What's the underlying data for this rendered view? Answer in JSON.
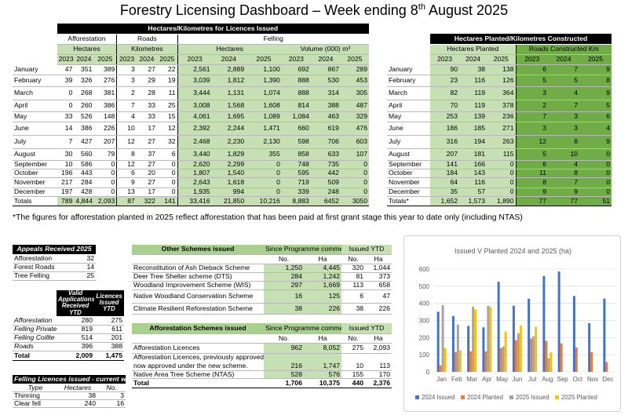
{
  "title_main": "Forestry Licensing Dashboard – Week ending 8",
  "title_sup": "th",
  "title_end": " August 2025",
  "main_table": {
    "header_top": "Hectares/Kilometres for Licences Issued",
    "header_groups": [
      "Afforestation",
      "Roads",
      "Felling"
    ],
    "sub_headers": [
      "Hectares",
      "Kilometres",
      "Hectares",
      "Volume (000) m³"
    ],
    "years": [
      "2023",
      "2024",
      "2025"
    ],
    "rows": [
      {
        "m": "January",
        "v": [
          "47",
          "351",
          "389",
          "3",
          "27",
          "22",
          "2,561",
          "2,889",
          "1,100",
          "692",
          "867",
          "289"
        ]
      },
      {
        "m": "February",
        "v": [
          "39",
          "326",
          "276",
          "3",
          "29",
          "19",
          "3,039",
          "1,812",
          "1,390",
          "888",
          "530",
          "453"
        ]
      },
      {
        "m": "March",
        "v": [
          "0",
          "268",
          "381",
          "2",
          "28",
          "11",
          "3,444",
          "1,131",
          "1,074",
          "888",
          "314",
          "305"
        ]
      },
      {
        "m": "April",
        "v": [
          "0",
          "260",
          "386",
          "7",
          "33",
          "25",
          "3,008",
          "1,568",
          "1,608",
          "814",
          "388",
          "487"
        ]
      },
      {
        "m": "May",
        "v": [
          "33",
          "526",
          "148",
          "4",
          "33",
          "15",
          "4,061",
          "1,695",
          "1,089",
          "1,084",
          "463",
          "329"
        ]
      },
      {
        "m": "June",
        "v": [
          "14",
          "386",
          "226",
          "10",
          "17",
          "12",
          "2,392",
          "2,244",
          "1,471",
          "660",
          "619",
          "476"
        ]
      },
      {
        "m": "July",
        "v": [
          "7",
          "427",
          "207",
          "12",
          "27",
          "32",
          "2,468",
          "2,230",
          "2,130",
          "598",
          "706",
          "603"
        ]
      },
      {
        "m": "August",
        "v": [
          "30",
          "560",
          "79",
          "8",
          "37",
          "6",
          "3,440",
          "1,829",
          "355",
          "858",
          "633",
          "107"
        ]
      },
      {
        "m": "September",
        "v": [
          "10",
          "586",
          "0",
          "12",
          "27",
          "0",
          "2,620",
          "2,299",
          "0",
          "748",
          "735",
          "0"
        ]
      },
      {
        "m": "October",
        "v": [
          "196",
          "443",
          "0",
          "6",
          "20",
          "0",
          "1,807",
          "1,540",
          "0",
          "595",
          "442",
          "0"
        ]
      },
      {
        "m": "November",
        "v": [
          "217",
          "284",
          "0",
          "9",
          "27",
          "0",
          "2,643",
          "1,618",
          "0",
          "719",
          "509",
          "0"
        ]
      },
      {
        "m": "December",
        "v": [
          "197",
          "428",
          "0",
          "13",
          "17",
          "0",
          "1,935",
          "994",
          "0",
          "339",
          "248",
          "0"
        ]
      }
    ],
    "totals_label": "Totals",
    "totals": [
      "789",
      "4,844",
      "2,093",
      "87",
      "322",
      "141",
      "33,416",
      "21,850",
      "10,216",
      "8,883",
      "6452",
      "3050"
    ]
  },
  "footnote": "*The figures for afforestation planted in 2025 reflect afforestation that has been paid at first grant stage this year to date only (including NTAS)",
  "planted_table": {
    "header_top": "Hectares Planted/Kilometres Constructed",
    "sub_headers": [
      "Hectares Planted",
      "Roads Constructed Km"
    ],
    "years": [
      "2023",
      "2024",
      "2025"
    ],
    "rows": [
      {
        "m": "January",
        "v": [
          "90",
          "38",
          "138",
          "6",
          "7",
          "9"
        ]
      },
      {
        "m": "February",
        "v": [
          "23",
          "116",
          "126",
          "5",
          "5",
          "8"
        ]
      },
      {
        "m": "March",
        "v": [
          "82",
          "119",
          "364",
          "3",
          "4",
          "9"
        ]
      },
      {
        "m": "April",
        "v": [
          "70",
          "119",
          "378",
          "2",
          "7",
          "5"
        ]
      },
      {
        "m": "May",
        "v": [
          "253",
          "139",
          "236",
          "7",
          "3",
          "6"
        ]
      },
      {
        "m": "June",
        "v": [
          "186",
          "185",
          "271",
          "3",
          "3",
          "4"
        ]
      },
      {
        "m": "July",
        "v": [
          "316",
          "194",
          "263",
          "12",
          "8",
          "9"
        ]
      },
      {
        "m": "August",
        "v": [
          "207",
          "181",
          "115",
          "5",
          "10",
          "0"
        ]
      },
      {
        "m": "September",
        "v": [
          "141",
          "166",
          "0",
          "6",
          "4",
          "0"
        ]
      },
      {
        "m": "October",
        "v": [
          "184",
          "143",
          "0",
          "11",
          "8",
          "0"
        ]
      },
      {
        "m": "November",
        "v": [
          "64",
          "116",
          "0",
          "8",
          "7",
          "0"
        ]
      },
      {
        "m": "December",
        "v": [
          "35",
          "57",
          "0",
          "9",
          "9",
          "0"
        ]
      }
    ],
    "totals_label": "Totals*",
    "totals": [
      "1,652",
      "1,573",
      "1,890",
      "77",
      "77",
      "51"
    ]
  },
  "appeals": {
    "header": "Appeals Received 2025",
    "rows": [
      [
        "Afforestation",
        "32"
      ],
      [
        "Forest Roads",
        "14"
      ],
      [
        "Tree Felling",
        "25"
      ]
    ]
  },
  "applications": {
    "headers": [
      "Valid Applications Received YTD",
      "Licences Issued YTD"
    ],
    "rows": [
      [
        "Afforestation",
        "280",
        "275"
      ],
      [
        "Felling Private",
        "819",
        "611"
      ],
      [
        "Felling Coillte",
        "514",
        "201"
      ],
      [
        "Roads",
        "396",
        "388"
      ]
    ],
    "total": [
      "Total",
      "2,009",
      "1,475"
    ]
  },
  "felling_week": {
    "header": "Felling Licences issued - current week",
    "cols": [
      "Type",
      "Hectares",
      "No."
    ],
    "rows": [
      [
        "Thinning",
        "38",
        "3"
      ],
      [
        "Clear fell",
        "240",
        "16"
      ]
    ]
  },
  "other_schemes": {
    "header": "Other Schemes issued",
    "col_since": "Since Programme commenced",
    "col_ytd": "Issued YTD",
    "sub": [
      "No.",
      "Ha",
      "No.",
      "Ha"
    ],
    "rows": [
      [
        "Reconstitution of Ash Dieback Scheme",
        "1,250",
        "4,445",
        "320",
        "1,044"
      ],
      [
        "Deer Tree Shelter scheme (DTS)",
        "284",
        "1,242",
        "81",
        "373"
      ],
      [
        "Woodland Improvement Scheme (WIS)",
        "297",
        "1,669",
        "113",
        "658"
      ],
      [
        "Native Woodland Conservation Scheme",
        "16",
        "125",
        "6",
        "47"
      ],
      [
        "Climate Resilient Reforestation Scheme",
        "38",
        "226",
        "38",
        "226"
      ]
    ]
  },
  "aff_schemes": {
    "header": "Afforestation Schemes issued",
    "col_since": "Since Programme commenced",
    "col_ytd": "Issued YTD",
    "sub": [
      "No.",
      "Ha",
      "No.",
      "Ha"
    ],
    "rows": [
      [
        "Afforestation Licences",
        "962",
        "8,052",
        "275",
        "2,093"
      ],
      [
        "Afforestation Licences, previously approved,",
        "",
        "",
        " ",
        ""
      ],
      [
        "now approved under the new scheme.",
        "216",
        "1,747",
        "10",
        "113"
      ],
      [
        "Native Area Tree Scheme (NTAS)",
        "528",
        "576",
        "155",
        "170"
      ]
    ],
    "total": [
      "Total",
      "1,706",
      "10,375",
      "440",
      "2,376"
    ]
  },
  "chart_data": {
    "type": "bar",
    "title": "Issued V Planted 2024 and 2025 (ha)",
    "categories": [
      "Jan",
      "Feb",
      "Mar",
      "Apr",
      "May",
      "Jun",
      "Jul",
      "Aug",
      "Sep",
      "Oct",
      "Nov",
      "Dec"
    ],
    "ylim": [
      0,
      600
    ],
    "yticks": [
      "0",
      "100",
      "200",
      "300",
      "400",
      "500",
      "600"
    ],
    "series": [
      {
        "name": "2024 Issued",
        "color": "#4472c4",
        "values": [
          351,
          326,
          268,
          260,
          526,
          386,
          427,
          560,
          586,
          443,
          284,
          428
        ]
      },
      {
        "name": "2024 Planted",
        "color": "#ed7d31",
        "values": [
          38,
          116,
          119,
          119,
          139,
          185,
          194,
          181,
          166,
          143,
          116,
          57
        ]
      },
      {
        "name": "2025 Issued",
        "color": "#a5a5a5",
        "values": [
          389,
          276,
          381,
          386,
          148,
          226,
          207,
          79,
          0,
          0,
          0,
          0
        ]
      },
      {
        "name": "2025 Planted",
        "color": "#ffc000",
        "values": [
          138,
          126,
          364,
          378,
          236,
          271,
          263,
          115,
          0,
          0,
          0,
          0
        ]
      }
    ],
    "legend": "bottom"
  }
}
